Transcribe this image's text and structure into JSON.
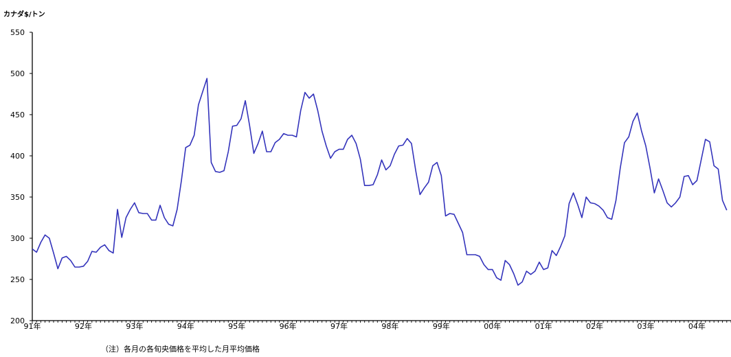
{
  "chart_data": {
    "type": "line",
    "title": "",
    "ylabel": "カナダ$/トン",
    "xlabel": "",
    "ylim": [
      200,
      550
    ],
    "yticks": [
      200,
      250,
      300,
      350,
      400,
      450,
      500,
      550
    ],
    "x_start": "1991-01",
    "x_end": "2004-09",
    "x_ticks": [
      "91年",
      "92年",
      "93年",
      "94年",
      "95年",
      "96年",
      "97年",
      "98年",
      "99年",
      "00年",
      "01年",
      "02年",
      "03年",
      "04年"
    ],
    "grid": false,
    "series": [
      {
        "color": "#3333bb",
        "values": [
          287,
          283,
          295,
          304,
          300,
          282,
          263,
          276,
          278,
          273,
          265,
          265,
          266,
          272,
          284,
          283,
          289,
          292,
          285,
          282,
          335,
          301,
          325,
          335,
          343,
          331,
          330,
          330,
          322,
          322,
          340,
          325,
          317,
          315,
          335,
          370,
          410,
          413,
          425,
          462,
          478,
          494,
          392,
          381,
          380,
          382,
          405,
          436,
          437,
          445,
          467,
          437,
          403,
          415,
          430,
          405,
          405,
          416,
          420,
          427,
          425,
          425,
          423,
          455,
          477,
          470,
          475,
          455,
          430,
          412,
          397,
          405,
          408,
          408,
          420,
          425,
          415,
          396,
          364,
          364,
          365,
          377,
          395,
          383,
          388,
          402,
          412,
          413,
          421,
          415,
          382,
          353,
          361,
          368,
          388,
          392,
          376,
          327,
          330,
          329,
          318,
          307,
          280,
          280,
          280,
          278,
          268,
          262,
          262,
          252,
          249,
          273,
          268,
          257,
          243,
          247,
          260,
          256,
          260,
          271,
          262,
          264,
          285,
          279,
          290,
          303,
          342,
          355,
          341,
          325,
          350,
          343,
          342,
          339,
          334,
          325,
          323,
          346,
          385,
          416,
          423,
          442,
          452,
          430,
          412,
          385,
          355,
          372,
          358,
          343,
          338,
          343,
          350,
          375,
          376,
          365,
          370,
          395,
          420,
          417,
          388,
          384,
          346,
          334
        ]
      }
    ],
    "note": "（注）各月の各旬央価格を平均した月平均価格"
  }
}
